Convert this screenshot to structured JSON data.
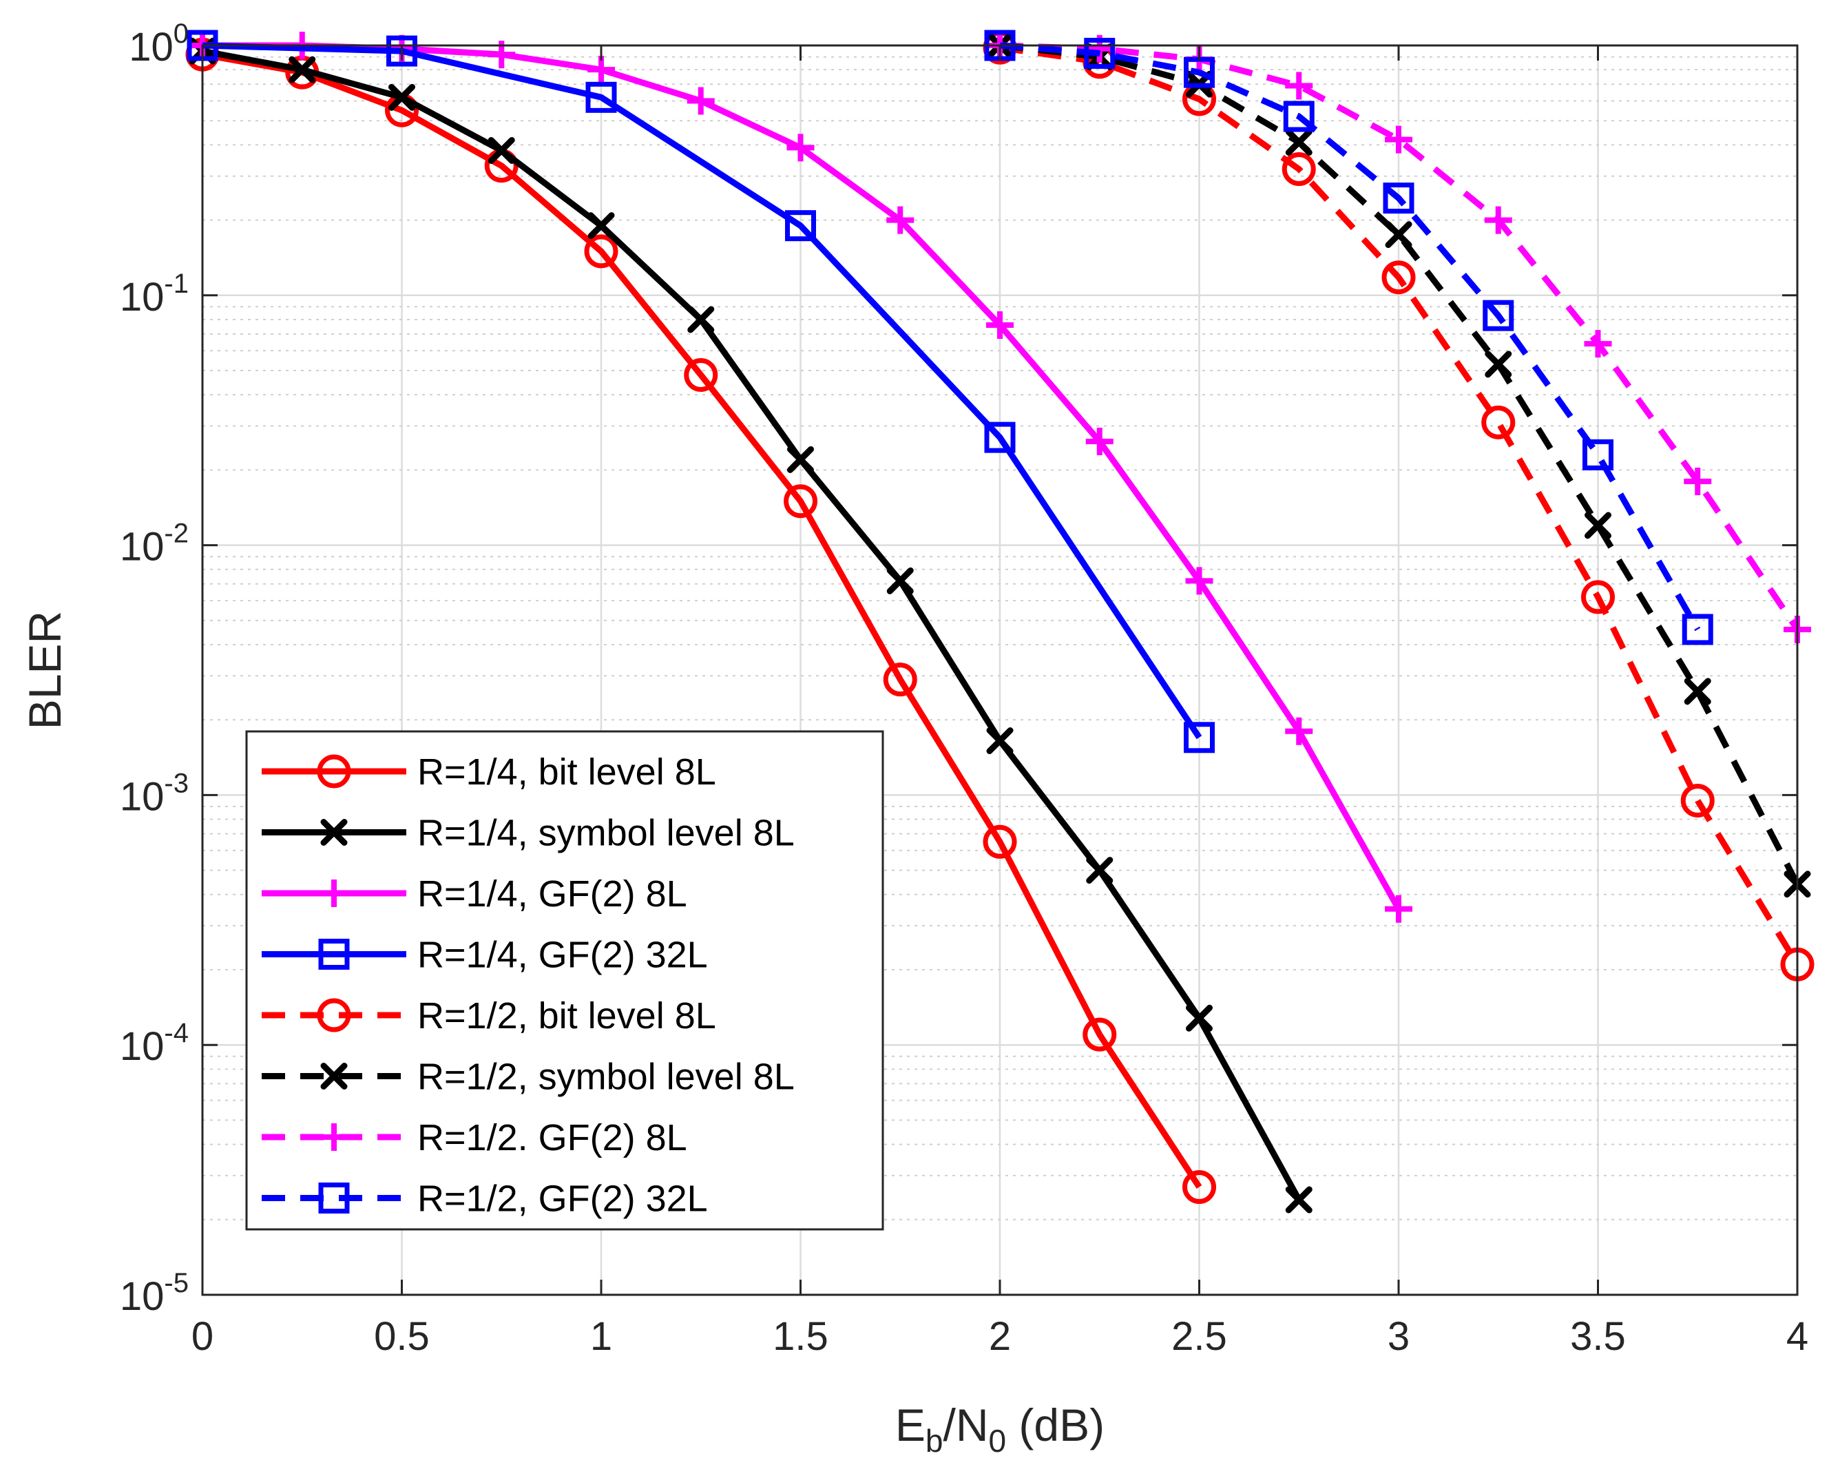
{
  "chart_data": {
    "type": "line",
    "title": "",
    "xlabel": "E_b/N_0 (dB)",
    "ylabel": "BLER",
    "x_scale": "linear",
    "y_scale": "log",
    "xlim": [
      0,
      4
    ],
    "ylim": [
      1e-05,
      1
    ],
    "grid": true,
    "minor_grid": true,
    "legend_position": "lower-left",
    "x_ticks": [
      {
        "value": 0,
        "label": "0"
      },
      {
        "value": 0.5,
        "label": "0.5"
      },
      {
        "value": 1,
        "label": "1"
      },
      {
        "value": 1.5,
        "label": "1.5"
      },
      {
        "value": 2,
        "label": "2"
      },
      {
        "value": 2.5,
        "label": "2.5"
      },
      {
        "value": 3,
        "label": "3"
      },
      {
        "value": 3.5,
        "label": "3.5"
      },
      {
        "value": 4,
        "label": "4"
      }
    ],
    "y_ticks": [
      {
        "value": 1,
        "base": "10",
        "exp": "0"
      },
      {
        "value": 0.1,
        "base": "10",
        "exp": "-1"
      },
      {
        "value": 0.01,
        "base": "10",
        "exp": "-2"
      },
      {
        "value": 0.001,
        "base": "10",
        "exp": "-3"
      },
      {
        "value": 0.0001,
        "base": "10",
        "exp": "-4"
      },
      {
        "value": 1e-05,
        "base": "10",
        "exp": "-5"
      }
    ],
    "series": [
      {
        "name": "R=1/4, bit level 8L",
        "color": "#ff0000",
        "dash": "solid",
        "marker": "circle",
        "x": [
          0,
          0.25,
          0.5,
          0.75,
          1,
          1.25,
          1.5,
          1.75,
          2,
          2.25,
          2.5
        ],
        "y": [
          0.92,
          0.78,
          0.55,
          0.33,
          0.15,
          0.048,
          0.015,
          0.0029,
          0.00065,
          0.00011,
          2.7e-05
        ]
      },
      {
        "name": "R=1/4, symbol level 8L",
        "color": "#000000",
        "dash": "solid",
        "marker": "x",
        "x": [
          0,
          0.25,
          0.5,
          0.75,
          1,
          1.25,
          1.5,
          1.75,
          2,
          2.25,
          2.5,
          2.75
        ],
        "y": [
          0.95,
          0.8,
          0.62,
          0.38,
          0.19,
          0.08,
          0.022,
          0.0072,
          0.00165,
          0.0005,
          0.000128,
          2.4e-05
        ]
      },
      {
        "name": "R=1/4, GF(2) 8L",
        "color": "#ff00ff",
        "dash": "solid",
        "marker": "plus",
        "x": [
          0,
          0.25,
          0.5,
          0.75,
          1,
          1.25,
          1.5,
          1.75,
          2,
          2.25,
          2.5,
          2.75,
          3
        ],
        "y": [
          1.0,
          1.0,
          0.97,
          0.92,
          0.8,
          0.6,
          0.39,
          0.2,
          0.076,
          0.026,
          0.0072,
          0.0018,
          0.00035
        ]
      },
      {
        "name": "R=1/4, GF(2) 32L",
        "color": "#0000ff",
        "dash": "solid",
        "marker": "square",
        "x": [
          0,
          0.5,
          1,
          1.5,
          2,
          2.5
        ],
        "y": [
          1.0,
          0.95,
          0.62,
          0.19,
          0.027,
          0.0017
        ]
      },
      {
        "name": "R=1/2, bit level 8L",
        "color": "#ff0000",
        "dash": "dashed",
        "marker": "circle",
        "x": [
          2,
          2.25,
          2.5,
          2.75,
          3,
          3.25,
          3.5,
          3.75,
          4
        ],
        "y": [
          0.98,
          0.86,
          0.61,
          0.32,
          0.118,
          0.031,
          0.0062,
          0.00095,
          0.00021
        ]
      },
      {
        "name": "R=1/2, symbol level 8L",
        "color": "#000000",
        "dash": "dashed",
        "marker": "x",
        "x": [
          2,
          2.25,
          2.5,
          2.75,
          3,
          3.25,
          3.5,
          3.75,
          4
        ],
        "y": [
          1.0,
          0.9,
          0.7,
          0.41,
          0.175,
          0.053,
          0.012,
          0.0026,
          0.00044
        ]
      },
      {
        "name": "R=1/2. GF(2) 8L",
        "color": "#ff00ff",
        "dash": "dashed",
        "marker": "plus",
        "x": [
          2,
          2.25,
          2.5,
          2.75,
          3,
          3.25,
          3.5,
          3.75,
          4
        ],
        "y": [
          1.0,
          0.97,
          0.88,
          0.69,
          0.42,
          0.2,
          0.064,
          0.018,
          0.0046
        ]
      },
      {
        "name": "R=1/2, GF(2) 32L",
        "color": "#0000ff",
        "dash": "dashed",
        "marker": "square",
        "x": [
          2,
          2.25,
          2.5,
          2.75,
          3,
          3.25,
          3.5,
          3.75
        ],
        "y": [
          1.0,
          0.93,
          0.78,
          0.52,
          0.245,
          0.083,
          0.023,
          0.0046
        ]
      }
    ]
  }
}
